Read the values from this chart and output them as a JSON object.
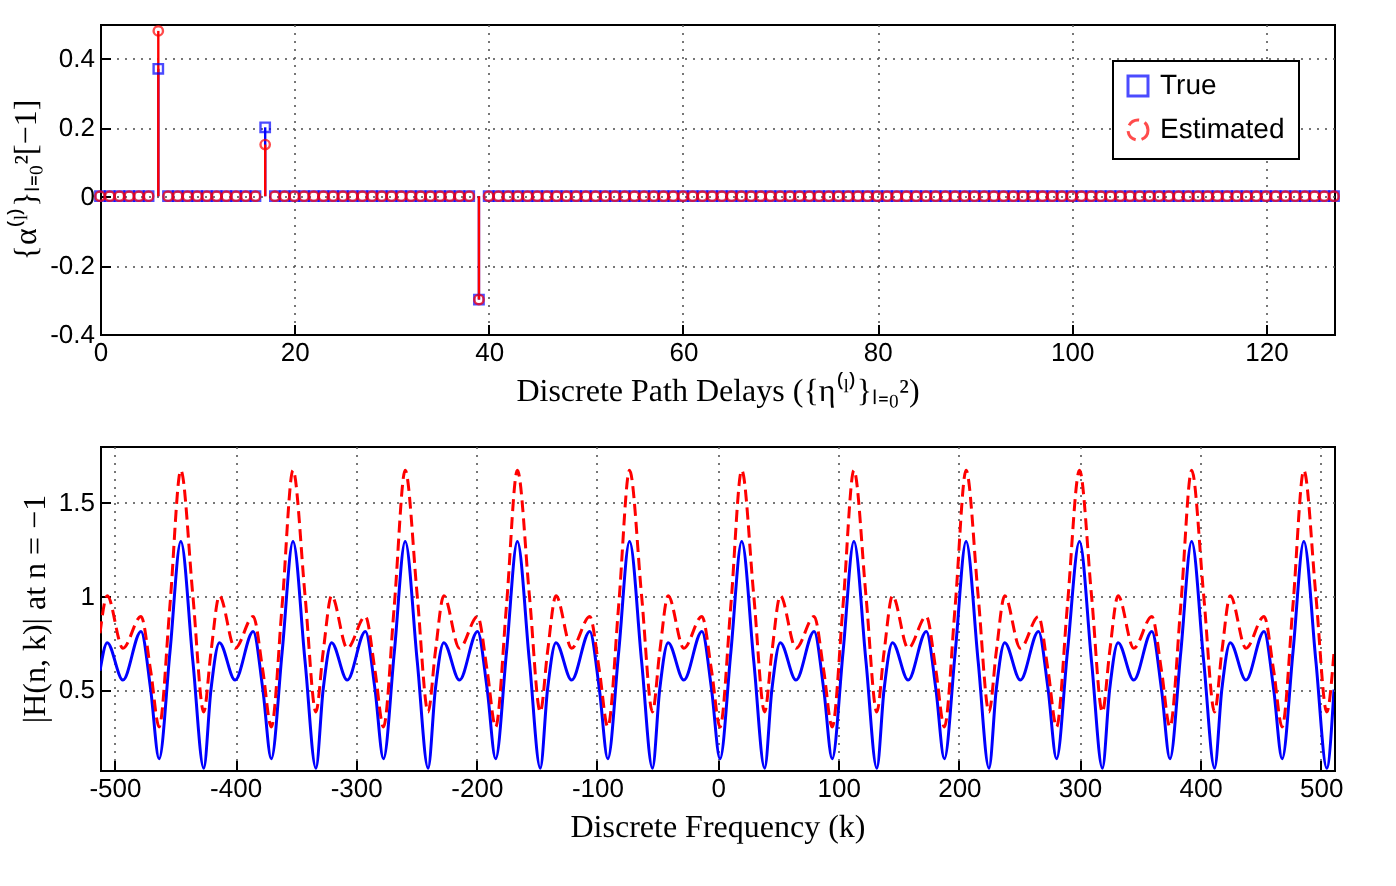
{
  "chart_data": [
    {
      "type": "lollipop",
      "xlabel": "Discrete Path Delays ({η⁽ˡ⁾}ₗ₌₀²)",
      "ylabel": "{α⁽ˡ⁾}ₗ₌₀²[−1]",
      "xlim": [
        0,
        127
      ],
      "xticks": [
        0,
        20,
        40,
        60,
        80,
        100,
        120
      ],
      "ylim": [
        -0.4,
        0.5
      ],
      "yticks": [
        -0.4,
        -0.2,
        0,
        0.2,
        0.4
      ],
      "grid": true,
      "legend": "top right",
      "x": [
        0,
        1,
        2,
        3,
        4,
        5,
        6,
        7,
        8,
        9,
        10,
        11,
        12,
        13,
        14,
        15,
        16,
        17,
        18,
        19,
        20,
        21,
        22,
        23,
        24,
        25,
        26,
        27,
        28,
        29,
        30,
        31,
        32,
        33,
        34,
        35,
        36,
        37,
        38,
        39,
        40,
        41,
        42,
        43,
        44,
        45,
        46,
        47,
        48,
        49,
        50,
        51,
        52,
        53,
        54,
        55,
        56,
        57,
        58,
        59,
        60,
        61,
        62,
        63,
        64,
        65,
        66,
        67,
        68,
        69,
        70,
        71,
        72,
        73,
        74,
        75,
        76,
        77,
        78,
        79,
        80,
        81,
        82,
        83,
        84,
        85,
        86,
        87,
        88,
        89,
        90,
        91,
        92,
        93,
        94,
        95,
        96,
        97,
        98,
        99,
        100,
        101,
        102,
        103,
        104,
        105,
        106,
        107,
        108,
        109,
        110,
        111,
        112,
        113,
        114,
        115,
        116,
        117,
        118,
        119,
        120,
        121,
        122,
        123,
        124,
        125,
        126,
        127
      ],
      "series": [
        {
          "name": "True",
          "color": "#0000ff",
          "marker": "square",
          "values": [
            0,
            0,
            0,
            0,
            0,
            0,
            0.37,
            0,
            0,
            0,
            0,
            0,
            0,
            0,
            0,
            0,
            0,
            0.2,
            0,
            0,
            0,
            0,
            0,
            0,
            0,
            0,
            0,
            0,
            0,
            0,
            0,
            0,
            0,
            0,
            0,
            0,
            0,
            0,
            0,
            -0.3,
            0,
            0,
            0,
            0,
            0,
            0,
            0,
            0,
            0,
            0,
            0,
            0,
            0,
            0,
            0,
            0,
            0,
            0,
            0,
            0,
            0,
            0,
            0,
            0,
            0,
            0,
            0,
            0,
            0,
            0,
            0,
            0,
            0,
            0,
            0,
            0,
            0,
            0,
            0,
            0,
            0,
            0,
            0,
            0,
            0,
            0,
            0,
            0,
            0,
            0,
            0,
            0,
            0,
            0,
            0,
            0,
            0,
            0,
            0,
            0,
            0,
            0,
            0,
            0,
            0,
            0,
            0,
            0,
            0,
            0,
            0,
            0,
            0,
            0,
            0,
            0,
            0,
            0,
            0,
            0,
            0,
            0,
            0,
            0,
            0,
            0,
            0,
            0
          ]
        },
        {
          "name": "Estimated",
          "color": "#ff0000",
          "marker": "circle",
          "values": [
            0,
            0,
            0,
            0,
            0,
            0,
            0.48,
            0,
            0,
            0,
            0,
            0,
            0,
            0,
            0,
            0,
            0,
            0.15,
            0,
            0,
            0,
            0,
            0,
            0,
            0,
            0,
            0,
            0,
            0,
            0,
            0,
            0,
            0,
            0,
            0,
            0,
            0,
            0,
            0,
            -0.3,
            0,
            0,
            0,
            0,
            0,
            0,
            0,
            0,
            0,
            0,
            0,
            0,
            0,
            0,
            0,
            0,
            0,
            0,
            0,
            0,
            0,
            0,
            0,
            0,
            0,
            0,
            0,
            0,
            0,
            0,
            0,
            0,
            0,
            0,
            0,
            0,
            0,
            0,
            0,
            0,
            0,
            0,
            0,
            0,
            0,
            0,
            0,
            0,
            0,
            0,
            0,
            0,
            0,
            0,
            0,
            0,
            0,
            0,
            0,
            0,
            0,
            0,
            0,
            0,
            0,
            0,
            0,
            0,
            0,
            0,
            0,
            0,
            0,
            0,
            0,
            0,
            0,
            0,
            0,
            0,
            0,
            0,
            0,
            0,
            0,
            0,
            0,
            0
          ]
        }
      ]
    },
    {
      "type": "line",
      "xlabel": "Discrete Frequency (k)",
      "ylabel": "|H(n, k)| at n = −1",
      "xlim": [
        -512,
        511
      ],
      "xticks": [
        -500,
        -400,
        -300,
        -200,
        -100,
        0,
        100,
        200,
        300,
        400,
        500
      ],
      "ylim": [
        0.07,
        1.8
      ],
      "yticks": [
        0.5,
        1,
        1.5
      ],
      "grid": true,
      "legend": "top right",
      "x": [
        -512,
        -506,
        -493,
        -478,
        -470,
        -463,
        -454,
        -445,
        -435,
        -426,
        -420,
        -413,
        -400,
        -385,
        -377,
        -370,
        -361,
        -352,
        -342,
        -333,
        -327,
        -320,
        -307,
        -292,
        -284,
        -277,
        -268,
        -259,
        -249,
        -240,
        -234,
        -227,
        -214,
        -199,
        -191,
        -184,
        -175,
        -166,
        -156,
        -147,
        -141,
        -134,
        -121,
        -106,
        -98,
        -91,
        -82,
        -73,
        -63,
        -54,
        -48,
        -41,
        -28,
        -13,
        -5,
        2,
        11,
        20,
        30,
        39,
        45,
        52,
        65,
        80,
        88,
        95,
        104,
        113,
        123,
        132,
        138,
        145,
        158,
        173,
        181,
        188,
        197,
        206,
        216,
        225,
        231,
        238,
        251,
        266,
        274,
        281,
        290,
        300,
        310,
        319,
        325,
        332,
        345,
        360,
        368,
        375,
        384,
        393,
        403,
        412,
        418,
        425,
        438,
        453,
        461,
        468,
        477,
        486,
        496,
        505,
        511
      ],
      "series": [
        {
          "name": "True",
          "color": "#0000ff",
          "line_style": "solid",
          "values": [
            0.6,
            0.75,
            0.55,
            0.81,
            0.5,
            0.13,
            0.7,
            1.29,
            0.65,
            0.08,
            0.5,
            0.75,
            0.55,
            0.81,
            0.5,
            0.13,
            0.7,
            1.29,
            0.65,
            0.08,
            0.5,
            0.75,
            0.55,
            0.81,
            0.5,
            0.13,
            0.7,
            1.29,
            0.65,
            0.08,
            0.5,
            0.75,
            0.55,
            0.81,
            0.5,
            0.13,
            0.7,
            1.29,
            0.65,
            0.08,
            0.5,
            0.75,
            0.55,
            0.81,
            0.5,
            0.13,
            0.7,
            1.29,
            0.65,
            0.08,
            0.5,
            0.75,
            0.55,
            0.81,
            0.5,
            0.13,
            0.7,
            1.29,
            0.65,
            0.08,
            0.5,
            0.75,
            0.55,
            0.81,
            0.5,
            0.13,
            0.7,
            1.29,
            0.65,
            0.08,
            0.5,
            0.75,
            0.55,
            0.81,
            0.5,
            0.13,
            0.7,
            1.29,
            0.65,
            0.08,
            0.5,
            0.75,
            0.55,
            0.81,
            0.5,
            0.13,
            0.7,
            1.29,
            0.65,
            0.08,
            0.5,
            0.75,
            0.55,
            0.81,
            0.5,
            0.13,
            0.7,
            1.29,
            0.65,
            0.08,
            0.5,
            0.75,
            0.55,
            0.81,
            0.5,
            0.13,
            0.7,
            1.29,
            0.65,
            0.08,
            0.5
          ]
        },
        {
          "name": "Estimated",
          "color": "#ff0000",
          "line_style": "dashed",
          "values": [
            0.8,
            1.0,
            0.72,
            0.89,
            0.6,
            0.3,
            0.95,
            1.67,
            1.0,
            0.38,
            0.7,
            1.0,
            0.72,
            0.89,
            0.6,
            0.3,
            0.95,
            1.67,
            1.0,
            0.38,
            0.7,
            1.0,
            0.72,
            0.89,
            0.6,
            0.3,
            0.95,
            1.67,
            1.0,
            0.38,
            0.7,
            1.0,
            0.72,
            0.89,
            0.6,
            0.3,
            0.95,
            1.67,
            1.0,
            0.38,
            0.7,
            1.0,
            0.72,
            0.89,
            0.6,
            0.3,
            0.95,
            1.67,
            1.0,
            0.38,
            0.7,
            1.0,
            0.72,
            0.89,
            0.6,
            0.3,
            0.95,
            1.67,
            1.0,
            0.38,
            0.7,
            1.0,
            0.72,
            0.89,
            0.6,
            0.3,
            0.95,
            1.67,
            1.0,
            0.38,
            0.7,
            1.0,
            0.72,
            0.89,
            0.6,
            0.3,
            0.95,
            1.67,
            1.0,
            0.38,
            0.7,
            1.0,
            0.72,
            0.89,
            0.6,
            0.3,
            0.95,
            1.67,
            1.0,
            0.38,
            0.7,
            1.0,
            0.72,
            0.89,
            0.6,
            0.3,
            0.95,
            1.67,
            1.0,
            0.38,
            0.7,
            1.0,
            0.72,
            0.89,
            0.6,
            0.3,
            0.95,
            1.67,
            1.0,
            0.38,
            0.7
          ]
        }
      ]
    }
  ]
}
